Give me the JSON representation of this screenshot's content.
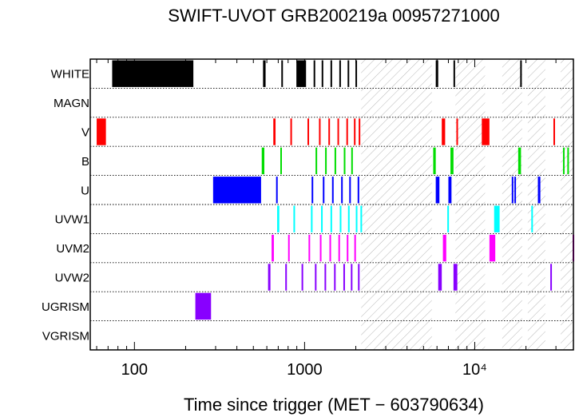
{
  "chart_data": {
    "type": "timeline",
    "title": "SWIFT-UVOT GRB200219a 00957271000",
    "xlabel": "Time since trigger (MET − 603790634)",
    "xscale": "log",
    "xlim": [
      55,
      38000
    ],
    "x_tick_labels": [
      {
        "value": 100,
        "label": "100"
      },
      {
        "value": 1000,
        "label": "1000"
      },
      {
        "value": 10000,
        "label": "10⁴"
      }
    ],
    "hatched_regions": [
      [
        2150,
        5600
      ],
      [
        7700,
        11500
      ],
      [
        14500,
        19000
      ],
      [
        20500,
        26000
      ],
      [
        32000,
        38000
      ]
    ],
    "rows": [
      {
        "name": "WHITE",
        "color": "#000000",
        "segments": [
          [
            74,
            222
          ],
          [
            570,
            590
          ],
          [
            730,
            745
          ],
          [
            895,
            1020
          ],
          [
            1130,
            1140
          ],
          [
            1260,
            1270
          ],
          [
            1420,
            1430
          ],
          [
            1600,
            1610
          ],
          [
            1790,
            1800
          ],
          [
            1990,
            2000
          ],
          [
            5900,
            6100
          ],
          [
            7500,
            7650
          ],
          [
            18500,
            18800
          ]
        ]
      },
      {
        "name": "MAGN",
        "color": "#000000",
        "segments": []
      },
      {
        "name": "V",
        "color": "#ff0000",
        "segments": [
          [
            60,
            68
          ],
          [
            655,
            675
          ],
          [
            825,
            840
          ],
          [
            1040,
            1050
          ],
          [
            1215,
            1230
          ],
          [
            1380,
            1395
          ],
          [
            1560,
            1575
          ],
          [
            1760,
            1775
          ],
          [
            1950,
            1965
          ],
          [
            2080,
            2095
          ],
          [
            6400,
            6700
          ],
          [
            7800,
            7950
          ],
          [
            11000,
            12200
          ],
          [
            29000,
            29500
          ]
        ]
      },
      {
        "name": "B",
        "color": "#00dd00",
        "segments": [
          [
            560,
            580
          ],
          [
            720,
            735
          ],
          [
            1160,
            1175
          ],
          [
            1320,
            1335
          ],
          [
            1500,
            1515
          ],
          [
            1700,
            1715
          ],
          [
            1880,
            1895
          ],
          [
            5700,
            5900
          ],
          [
            7200,
            7500
          ],
          [
            18000,
            18700
          ],
          [
            33000,
            33600
          ],
          [
            35000,
            35700
          ]
        ]
      },
      {
        "name": "U",
        "color": "#0000ff",
        "segments": [
          [
            290,
            555
          ],
          [
            680,
            695
          ],
          [
            1100,
            1115
          ],
          [
            1280,
            1295
          ],
          [
            1450,
            1465
          ],
          [
            1640,
            1655
          ],
          [
            1830,
            1845
          ],
          [
            2050,
            2065
          ],
          [
            5900,
            6200
          ],
          [
            7000,
            7300
          ],
          [
            16500,
            16800
          ],
          [
            17100,
            17400
          ],
          [
            23500,
            24300
          ]
        ]
      },
      {
        "name": "UVW1",
        "color": "#00ffff",
        "segments": [
          [
            690,
            710
          ],
          [
            860,
            875
          ],
          [
            1090,
            1105
          ],
          [
            1250,
            1265
          ],
          [
            1420,
            1435
          ],
          [
            1610,
            1625
          ],
          [
            1800,
            1815
          ],
          [
            2000,
            2015
          ],
          [
            2130,
            2145
          ],
          [
            6900,
            7050
          ],
          [
            13000,
            14000
          ],
          [
            21500,
            21800
          ]
        ]
      },
      {
        "name": "UVM2",
        "color": "#ff00ff",
        "segments": [
          [
            640,
            660
          ],
          [
            800,
            815
          ],
          [
            1055,
            1070
          ],
          [
            1230,
            1245
          ],
          [
            1400,
            1415
          ],
          [
            1580,
            1595
          ],
          [
            1770,
            1785
          ],
          [
            1960,
            1975
          ],
          [
            6500,
            6800
          ],
          [
            12200,
            13200
          ],
          [
            37600,
            38000
          ]
        ]
      },
      {
        "name": "UVW2",
        "color": "#8800ff",
        "segments": [
          [
            610,
            630
          ],
          [
            770,
            785
          ],
          [
            960,
            975
          ],
          [
            1150,
            1165
          ],
          [
            1310,
            1325
          ],
          [
            1490,
            1505
          ],
          [
            1690,
            1705
          ],
          [
            1870,
            1885
          ],
          [
            2060,
            2075
          ],
          [
            6100,
            6400
          ],
          [
            7500,
            7900
          ],
          [
            27800,
            28300
          ]
        ]
      },
      {
        "name": "UGRISM",
        "color": "#8800ff",
        "segments": [
          [
            228,
            282
          ]
        ]
      },
      {
        "name": "VGRISM",
        "color": "#000000",
        "segments": []
      }
    ]
  }
}
